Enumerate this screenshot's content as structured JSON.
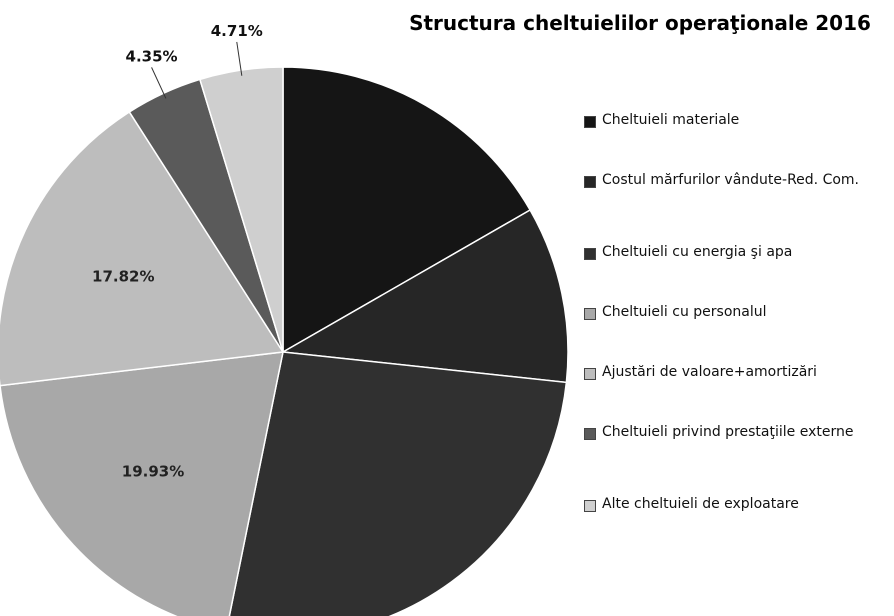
{
  "chart_data": {
    "type": "pie",
    "title": "Structura cheltuielilor operaţionale 2016",
    "categories": [
      "Cheltuieli materiale",
      "Costul mărfurilor vândute-Red. Com.",
      "Cheltuieli cu energia şi apa",
      "Cheltuieli cu personalul",
      "Ajustări de valoare+amortizări",
      "Cheltuieli privind prestaţiile externe",
      "Alte cheltuieli de exploatare"
    ],
    "values": [
      16.7,
      10.0,
      26.49,
      19.93,
      17.82,
      4.35,
      4.71
    ],
    "value_labels": [
      null,
      null,
      null,
      "19.93%",
      "17.82%",
      "4.35%",
      "4.71%"
    ],
    "colors": [
      "#151515",
      "#262626",
      "#303030",
      "#a8a8a8",
      "#bdbdbd",
      "#5a5a5a",
      "#cfcfcf"
    ],
    "legend": "right"
  }
}
